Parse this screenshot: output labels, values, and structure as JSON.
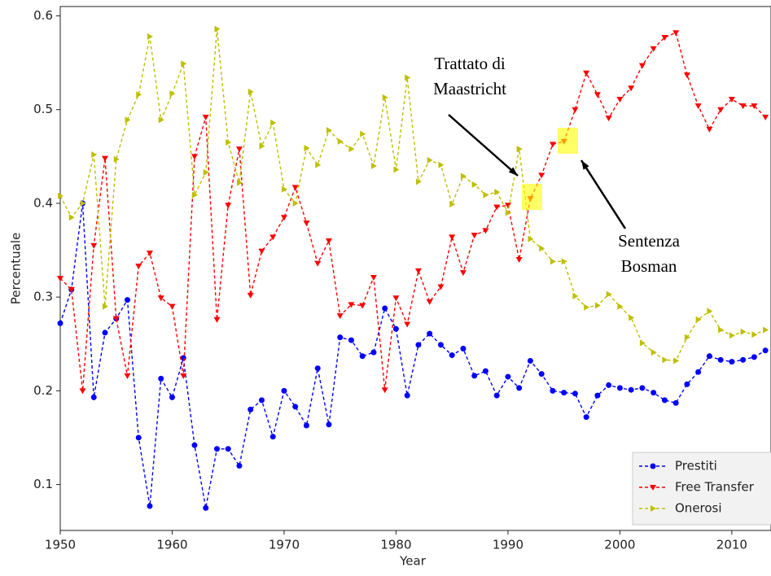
{
  "chart_data": {
    "type": "line",
    "xlabel": "Year",
    "ylabel": "Percentuale",
    "x": [
      1950,
      1951,
      1952,
      1953,
      1954,
      1955,
      1956,
      1957,
      1958,
      1959,
      1960,
      1961,
      1962,
      1963,
      1964,
      1965,
      1966,
      1967,
      1968,
      1969,
      1970,
      1971,
      1972,
      1973,
      1974,
      1975,
      1976,
      1977,
      1978,
      1979,
      1980,
      1981,
      1982,
      1983,
      1984,
      1985,
      1986,
      1987,
      1988,
      1989,
      1990,
      1991,
      1992,
      1993,
      1994,
      1995,
      1996,
      1997,
      1998,
      1999,
      2000,
      2001,
      2002,
      2003,
      2004,
      2005,
      2006,
      2007,
      2008,
      2009,
      2010,
      2011,
      2012,
      2013
    ],
    "series": [
      {
        "name": "Prestiti",
        "color": "#0000ff",
        "marker": "o",
        "values": [
          0.272,
          0.308,
          0.4,
          0.193,
          0.262,
          0.277,
          0.297,
          0.15,
          0.077,
          0.213,
          0.193,
          0.235,
          0.142,
          0.075,
          0.138,
          0.138,
          0.12,
          0.18,
          0.19,
          0.151,
          0.2,
          0.183,
          0.163,
          0.224,
          0.164,
          0.257,
          0.254,
          0.237,
          0.241,
          0.288,
          0.266,
          0.195,
          0.249,
          0.261,
          0.249,
          0.238,
          0.245,
          0.216,
          0.221,
          0.195,
          0.215,
          0.203,
          0.232,
          0.218,
          0.2,
          0.198,
          0.197,
          0.172,
          0.195,
          0.206,
          0.203,
          0.201,
          0.203,
          0.198,
          0.19,
          0.187,
          0.207,
          0.22,
          0.237,
          0.233,
          0.231,
          0.233,
          0.236,
          0.243
        ]
      },
      {
        "name": "Free Transfer",
        "color": "#ff0000",
        "marker": "v",
        "values": [
          0.32,
          0.308,
          0.2,
          0.355,
          0.448,
          0.277,
          0.216,
          0.333,
          0.347,
          0.299,
          0.29,
          0.216,
          0.45,
          0.492,
          0.276,
          0.398,
          0.458,
          0.302,
          0.349,
          0.364,
          0.385,
          0.417,
          0.379,
          0.336,
          0.36,
          0.28,
          0.292,
          0.291,
          0.321,
          0.201,
          0.299,
          0.271,
          0.328,
          0.295,
          0.311,
          0.364,
          0.326,
          0.366,
          0.371,
          0.396,
          0.398,
          0.34,
          0.405,
          0.43,
          0.463,
          0.466,
          0.5,
          0.539,
          0.516,
          0.491,
          0.511,
          0.523,
          0.547,
          0.565,
          0.577,
          0.582,
          0.537,
          0.504,
          0.479,
          0.5,
          0.511,
          0.504,
          0.504,
          0.492
        ]
      },
      {
        "name": "Onerosi",
        "color": "#bfbf00",
        "marker": ">",
        "values": [
          0.408,
          0.385,
          0.4,
          0.452,
          0.29,
          0.447,
          0.489,
          0.516,
          0.578,
          0.489,
          0.517,
          0.549,
          0.409,
          0.433,
          0.586,
          0.465,
          0.422,
          0.519,
          0.461,
          0.486,
          0.415,
          0.4,
          0.459,
          0.441,
          0.478,
          0.466,
          0.458,
          0.474,
          0.44,
          0.513,
          0.436,
          0.534,
          0.423,
          0.446,
          0.441,
          0.399,
          0.429,
          0.42,
          0.409,
          0.412,
          0.39,
          0.458,
          0.362,
          0.352,
          0.338,
          0.338,
          0.301,
          0.289,
          0.291,
          0.303,
          0.29,
          0.278,
          0.251,
          0.241,
          0.233,
          0.232,
          0.257,
          0.276,
          0.285,
          0.265,
          0.259,
          0.263,
          0.26,
          0.265
        ]
      }
    ],
    "xlim": [
      1950,
      2013.5
    ],
    "xticks": [
      1950,
      1960,
      1970,
      1980,
      1990,
      2000,
      2010
    ],
    "ylim": [
      0.051,
      0.61
    ],
    "yticks": [
      0.1,
      0.2,
      0.3,
      0.4,
      0.5,
      0.6
    ],
    "legend": "lower right",
    "annotations": [
      {
        "lines": [
          "Trattato di",
          "Maastricht"
        ]
      },
      {
        "lines": [
          "Sentenza",
          "Bosman"
        ]
      }
    ]
  }
}
